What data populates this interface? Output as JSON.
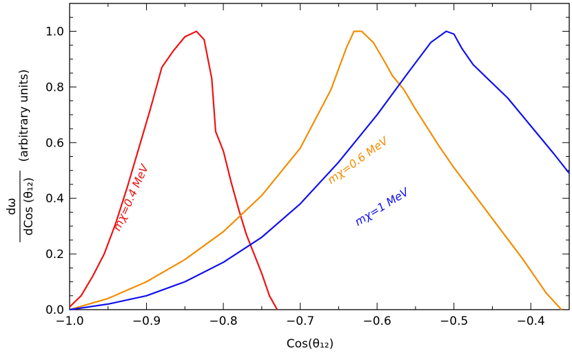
{
  "chart_data": {
    "type": "line",
    "xlabel": "Cos(θ₁₂)",
    "ylabel_numerator": "dω",
    "ylabel_denominator": "dCos (θ₁₂)",
    "ylabel_suffix": "(arbitrary units)",
    "xlim": [
      -1.0,
      -0.35
    ],
    "ylim": [
      0.0,
      1.1
    ],
    "x_ticks": [
      -1.0,
      -0.9,
      -0.8,
      -0.7,
      -0.6,
      -0.5,
      -0.4
    ],
    "x_tick_labels": [
      "−1.0",
      "−0.9",
      "−0.8",
      "−0.7",
      "−0.6",
      "−0.5",
      "−0.4"
    ],
    "y_ticks": [
      0.0,
      0.2,
      0.4,
      0.6,
      0.8,
      1.0
    ],
    "y_tick_labels": [
      "0.0",
      "0.2",
      "0.4",
      "0.6",
      "0.8",
      "1.0"
    ],
    "grid": false,
    "series": [
      {
        "name": "mχ=0.4 MeV",
        "color": "#ee1111",
        "x": [
          -1.0,
          -0.985,
          -0.97,
          -0.955,
          -0.94,
          -0.925,
          -0.91,
          -0.895,
          -0.88,
          -0.865,
          -0.85,
          -0.835,
          -0.825,
          -0.815,
          -0.81,
          -0.8,
          -0.79,
          -0.78,
          -0.77,
          -0.76,
          -0.75,
          -0.74,
          -0.73
        ],
        "values": [
          0.01,
          0.05,
          0.12,
          0.2,
          0.31,
          0.44,
          0.58,
          0.72,
          0.87,
          0.93,
          0.98,
          1.0,
          0.97,
          0.83,
          0.64,
          0.57,
          0.46,
          0.36,
          0.27,
          0.2,
          0.13,
          0.05,
          0.0
        ]
      },
      {
        "name": "mχ=0.6 MeV",
        "color": "#f28c00",
        "x": [
          -1.0,
          -0.95,
          -0.9,
          -0.85,
          -0.8,
          -0.75,
          -0.7,
          -0.66,
          -0.64,
          -0.63,
          -0.62,
          -0.605,
          -0.59,
          -0.58,
          -0.565,
          -0.55,
          -0.52,
          -0.5,
          -0.47,
          -0.44,
          -0.41,
          -0.38,
          -0.36
        ],
        "values": [
          0.0,
          0.04,
          0.1,
          0.18,
          0.28,
          0.41,
          0.58,
          0.79,
          0.94,
          1.0,
          1.0,
          0.96,
          0.89,
          0.84,
          0.79,
          0.72,
          0.59,
          0.51,
          0.4,
          0.29,
          0.18,
          0.06,
          0.0
        ]
      },
      {
        "name": "mχ=1 MeV",
        "color": "#1010ee",
        "x": [
          -1.0,
          -0.95,
          -0.9,
          -0.85,
          -0.8,
          -0.75,
          -0.7,
          -0.65,
          -0.6,
          -0.56,
          -0.53,
          -0.51,
          -0.5,
          -0.49,
          -0.475,
          -0.46,
          -0.43,
          -0.4,
          -0.37,
          -0.35
        ],
        "values": [
          0.0,
          0.02,
          0.05,
          0.1,
          0.17,
          0.26,
          0.38,
          0.53,
          0.7,
          0.85,
          0.96,
          1.0,
          0.99,
          0.94,
          0.88,
          0.84,
          0.76,
          0.66,
          0.56,
          0.49
        ]
      }
    ],
    "curve_labels": [
      {
        "text": "mχ=0.4 MeV",
        "x": -0.935,
        "y": 0.28,
        "angle_deg": -66,
        "color": "#ee1111"
      },
      {
        "text": "mχ=0.6 MeV",
        "x": -0.66,
        "y": 0.45,
        "angle_deg": -36,
        "color": "#f28c00"
      },
      {
        "text": "mχ=1 MeV",
        "x": -0.625,
        "y": 0.3,
        "angle_deg": -32,
        "color": "#1010ee"
      }
    ]
  }
}
